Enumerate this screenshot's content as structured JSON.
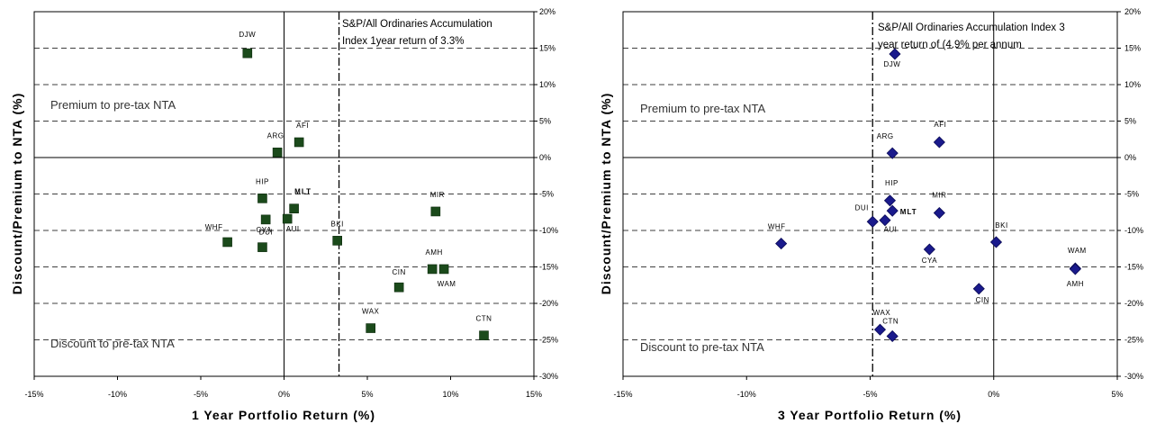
{
  "chart_data": [
    {
      "type": "scatter",
      "xlabel": "1 Year Portfolio Return (%)",
      "ylabel": "Discount/Premium to NTA (%)",
      "xlim": [
        -15,
        15
      ],
      "ylim": [
        -30,
        20
      ],
      "x_ticks": [
        "-15%",
        "-10%",
        "-5%",
        "0%",
        "5%",
        "10%",
        "15%"
      ],
      "y_ticks": [
        "20%",
        "15%",
        "10%",
        "5%",
        "0%",
        "-5%",
        "-10%",
        "-15%",
        "-20%",
        "-25%",
        "-30%"
      ],
      "grid": "horizontal dashed",
      "marker": "square",
      "marker_color": "#1b4a1b",
      "reference_x": 3.3,
      "annotation": [
        "S&P/All Ordinaries Accumulation",
        "Index 1year return of 3.3%"
      ],
      "region_labels": {
        "premium": "Premium to pre-tax NTA",
        "discount": "Discount to pre-tax NTA"
      },
      "points": [
        {
          "label": "DJW",
          "x": -2.2,
          "y": 14.3
        },
        {
          "label": "AFI",
          "x": 0.9,
          "y": 2.1
        },
        {
          "label": "ARG",
          "x": -0.4,
          "y": 0.7
        },
        {
          "label": "HIP",
          "x": -1.3,
          "y": -5.6
        },
        {
          "label": "MLT",
          "x": 0.6,
          "y": -7.0
        },
        {
          "label": "CYA",
          "x": -1.1,
          "y": -8.5
        },
        {
          "label": "AUI",
          "x": 0.2,
          "y": -8.4
        },
        {
          "label": "WHF",
          "x": -3.4,
          "y": -11.6
        },
        {
          "label": "DUI",
          "x": -1.3,
          "y": -12.3
        },
        {
          "label": "BKI",
          "x": 3.2,
          "y": -11.4
        },
        {
          "label": "MIR",
          "x": 9.1,
          "y": -7.4
        },
        {
          "label": "AMH",
          "x": 8.9,
          "y": -15.3
        },
        {
          "label": "WAM",
          "x": 9.6,
          "y": -15.3
        },
        {
          "label": "CIN",
          "x": 6.9,
          "y": -17.8
        },
        {
          "label": "WAX",
          "x": 5.2,
          "y": -23.4
        },
        {
          "label": "CTN",
          "x": 12.0,
          "y": -24.4
        }
      ]
    },
    {
      "type": "scatter",
      "xlabel": "3 Year Portfolio Return (%)",
      "ylabel": "Discount/Premium to NTA (%)",
      "xlim": [
        -15,
        5
      ],
      "ylim": [
        -30,
        20
      ],
      "x_ticks": [
        "-15%",
        "-10%",
        "-5%",
        "0%",
        "5%"
      ],
      "y_ticks": [
        "20%",
        "15%",
        "10%",
        "5%",
        "0%",
        "-5%",
        "-10%",
        "-15%",
        "-20%",
        "-25%",
        "-30%"
      ],
      "grid": "horizontal dashed",
      "marker": "diamond",
      "marker_color": "#1a1a8c",
      "reference_x": -4.9,
      "annotation": [
        "S&P/All Ordinaries Accumulation Index 3",
        "year return of (4.9% per annum"
      ],
      "region_labels": {
        "premium": "Premium to pre-tax NTA",
        "discount": "Discount to pre-tax NTA"
      },
      "points": [
        {
          "label": "DJW",
          "x": -4.0,
          "y": 14.2
        },
        {
          "label": "AFI",
          "x": -2.2,
          "y": 2.1
        },
        {
          "label": "ARG",
          "x": -4.1,
          "y": 0.6
        },
        {
          "label": "HIP",
          "x": -4.2,
          "y": -5.9
        },
        {
          "label": "MLT",
          "x": -4.1,
          "y": -7.3
        },
        {
          "label": "MIR",
          "x": -2.2,
          "y": -7.6
        },
        {
          "label": "DUI",
          "x": -4.9,
          "y": -8.8
        },
        {
          "label": "AUI",
          "x": -4.4,
          "y": -8.6
        },
        {
          "label": "WHF",
          "x": -8.6,
          "y": -11.8
        },
        {
          "label": "BKI",
          "x": 0.1,
          "y": -11.6
        },
        {
          "label": "CYA",
          "x": -2.6,
          "y": -12.6
        },
        {
          "label": "WAM",
          "x": 3.3,
          "y": -15.2
        },
        {
          "label": "AMH",
          "x": 3.3,
          "y": -15.3
        },
        {
          "label": "CIN",
          "x": -0.6,
          "y": -18.0
        },
        {
          "label": "WAX",
          "x": -4.6,
          "y": -23.6
        },
        {
          "label": "CTN",
          "x": -4.1,
          "y": -24.5
        }
      ]
    }
  ]
}
